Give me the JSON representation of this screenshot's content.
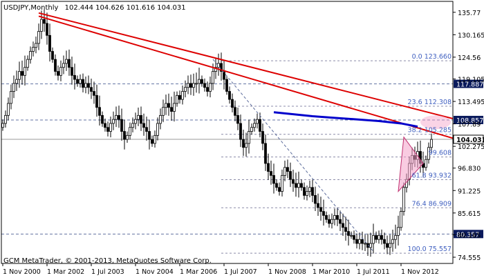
{
  "header": {
    "symbol_text": "USDJPY,Monthly",
    "ohlc_text": "102.444 104.626 101.616 104.031"
  },
  "footer": {
    "copyright": "GCM MetaTrader, © 2001-2013, MetaQuotes Software Corp."
  },
  "colors": {
    "candle": "#000000",
    "trendline": "#dd0000",
    "moving_average": "#0000cc",
    "triangle_fill": "#f4a0c8",
    "triangle_stroke": "#c03070",
    "fib_label": "#4060c0",
    "level_tag_bg": "#0a1a5c"
  },
  "price_axis": {
    "ticks": [
      "135.77",
      "130.165",
      "124.56",
      "119.105",
      "113.495",
      "107.89",
      "102.275",
      "96.830",
      "91.225",
      "85.615",
      "80.165",
      "74.555"
    ]
  },
  "tagged_levels": [
    {
      "label": "117.887",
      "price": 117.887
    },
    {
      "label": "108.857",
      "price": 108.857
    },
    {
      "label": "80.357",
      "price": 80.357
    },
    {
      "label": "104.031",
      "price": 104.031,
      "current": true
    }
  ],
  "fib_levels": [
    {
      "label": "0.0 123.660",
      "price": 123.66
    },
    {
      "label": "23.6 112.308",
      "price": 112.308
    },
    {
      "label": "38.2 105.285",
      "price": 105.285
    },
    {
      "label": "99.608",
      "price": 99.608
    },
    {
      "label": "61.8 93.932",
      "price": 93.932
    },
    {
      "label": "76.4 86.909",
      "price": 86.909
    },
    {
      "label": "100.0 75.557",
      "price": 75.557
    }
  ],
  "time_axis": {
    "labels": [
      "1 Nov 2000",
      "1 Mar 2002",
      "1 Jul 2003",
      "1 Nov 2004",
      "1 Mar 2006",
      "1 Jul 2007",
      "1 Nov 2008",
      "1 Mar 2010",
      "1 Jul 2011",
      "1 Nov 2012"
    ]
  },
  "chart_data": {
    "type": "candlestick",
    "title": "USDJPY,Monthly",
    "ylim": [
      73.0,
      138.5
    ],
    "x_labels": [
      "1 Nov 2000",
      "1 Mar 2002",
      "1 Jul 2003",
      "1 Nov 2004",
      "1 Mar 2006",
      "1 Jul 2007",
      "1 Nov 2008",
      "1 Mar 2010",
      "1 Jul 2011",
      "1 Nov 2012"
    ],
    "label_spacing_bars": 16,
    "monthly_closes": [
      108,
      110,
      113,
      116,
      118,
      119,
      121,
      120,
      122,
      124,
      126,
      127,
      128,
      131,
      134,
      133,
      130,
      126,
      124,
      121,
      120,
      122,
      123,
      124,
      122,
      120,
      119,
      118,
      119,
      117,
      118,
      117,
      116,
      115,
      112,
      110,
      108,
      107,
      106,
      108,
      109,
      110,
      109,
      106,
      104,
      105,
      107,
      108,
      109,
      110,
      108,
      107,
      106,
      104,
      103,
      105,
      108,
      110,
      112,
      113,
      112,
      111,
      113,
      115,
      114,
      116,
      117,
      118,
      117,
      118,
      118,
      119,
      118,
      117,
      116,
      118,
      121,
      122,
      123,
      121,
      119,
      116,
      114,
      112,
      110,
      108,
      104,
      102,
      103,
      106,
      107,
      108,
      109,
      106,
      103,
      98,
      96,
      95,
      93,
      92,
      91,
      95,
      97,
      96,
      94,
      93,
      92,
      93,
      92,
      90,
      91,
      92,
      90,
      88,
      87,
      86,
      85,
      84,
      83,
      84,
      85,
      84,
      83,
      82,
      81,
      80,
      80,
      79,
      78,
      79,
      78,
      78,
      77,
      78,
      80,
      79,
      80,
      79,
      78,
      77,
      78,
      79,
      80,
      82,
      86,
      92,
      94,
      98,
      100,
      99,
      101,
      98,
      97,
      99,
      102,
      104
    ],
    "drawn_levels": [
      117.887,
      108.857,
      80.357
    ],
    "fibonacci": {
      "anchor_high": 123.66,
      "anchor_low": 75.557,
      "levels": [
        {
          "ratio": "0.0",
          "price": 123.66
        },
        {
          "ratio": "23.6",
          "price": 112.308
        },
        {
          "ratio": "38.2",
          "price": 105.285
        },
        {
          "ratio": "",
          "price": 99.608
        },
        {
          "ratio": "61.8",
          "price": 93.932
        },
        {
          "ratio": "76.4",
          "price": 86.909
        },
        {
          "ratio": "100.0",
          "price": 75.557
        }
      ]
    },
    "trendlines": [
      {
        "name": "",
        "from": {
          "bar": 13,
          "price": 134.8
        },
        "to": {
          "bar": 154,
          "price": 104.3
        }
      },
      {
        "name": "",
        "from": {
          "bar": 13,
          "price": 135.6
        },
        "to": {
          "bar": 154,
          "price": 109.2
        }
      },
      {
        "name": "",
        "from": {
          "bar": 76,
          "price": 124.0
        },
        "to": {
          "bar": 134,
          "price": 76.0
        }
      }
    ],
    "moving_average": [
      {
        "bar": 98,
        "price": 110.8
      },
      {
        "bar": 105,
        "price": 110.3
      },
      {
        "bar": 112,
        "price": 109.8
      },
      {
        "bar": 120,
        "price": 109.4
      },
      {
        "bar": 128,
        "price": 109.0
      },
      {
        "bar": 136,
        "price": 108.6
      },
      {
        "bar": 144,
        "price": 108.0
      },
      {
        "bar": 150,
        "price": 107.2
      }
    ],
    "triangle_pattern": [
      {
        "bar": 145,
        "price": 104.6
      },
      {
        "bar": 152,
        "price": 98.0
      },
      {
        "bar": 143,
        "price": 91.0
      }
    ],
    "current_price": 104.031
  }
}
